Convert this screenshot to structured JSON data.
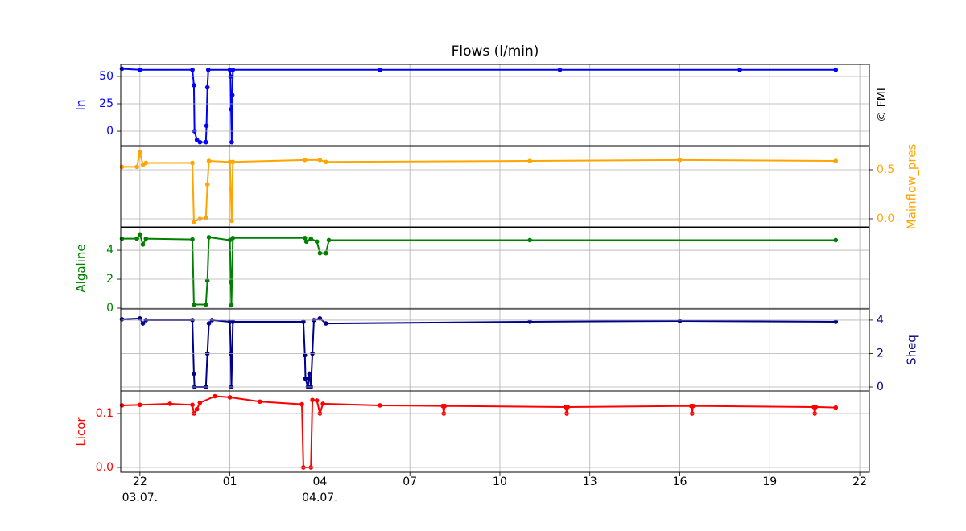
{
  "chart_data": [
    {
      "type": "line",
      "title": "Flows (l/min)",
      "annotation": "© FMI",
      "yaxis": "left",
      "ylim": [
        -13.2,
        61
      ],
      "yticks": [
        0,
        25,
        50
      ],
      "series": [
        {
          "name": "In",
          "color": "#0000ff",
          "x": [
            21.4,
            22,
            23.75,
            23.8,
            23.82,
            23.9,
            24.0,
            24.2,
            24.22,
            24.25,
            24.28,
            25.0,
            25.02,
            25.04,
            25.06,
            25.08,
            25.1,
            30,
            36,
            42,
            45.2
          ],
          "values": [
            57,
            56,
            56,
            42,
            0,
            -8,
            -10,
            -10,
            5,
            40,
            56,
            56,
            50,
            20,
            -10,
            33,
            56,
            56,
            56,
            56,
            56
          ]
        }
      ]
    },
    {
      "type": "line",
      "yaxis": "right",
      "ylim": [
        -0.082,
        0.738
      ],
      "yticks": [
        {
          "value": 0,
          "label": "0.0"
        },
        0.5
      ],
      "series": [
        {
          "name": "Mainflow_pres",
          "color": "#ffa500",
          "x": [
            21.4,
            21.9,
            22.0,
            22.1,
            22.2,
            23.75,
            23.8,
            24.0,
            24.2,
            24.25,
            24.3,
            25.0,
            25.03,
            25.06,
            25.1,
            27.5,
            28.0,
            28.2,
            35,
            40,
            45.2
          ],
          "values": [
            0.53,
            0.53,
            0.68,
            0.55,
            0.57,
            0.57,
            -0.03,
            0.0,
            0.01,
            0.35,
            0.59,
            0.58,
            0.3,
            -0.02,
            0.58,
            0.6,
            0.6,
            0.58,
            0.59,
            0.6,
            0.59
          ]
        }
      ]
    },
    {
      "type": "line",
      "yaxis": "left",
      "ylim": [
        -0.056,
        5.56
      ],
      "yticks": [
        0,
        2,
        4
      ],
      "series": [
        {
          "name": "Algaline",
          "color": "#008000",
          "x": [
            21.4,
            21.9,
            22.0,
            22.1,
            22.2,
            23.75,
            23.8,
            24.2,
            24.25,
            24.3,
            25.0,
            25.03,
            25.05,
            25.1,
            27.5,
            27.55,
            27.7,
            27.9,
            28.0,
            28.2,
            28.3,
            35,
            45.2
          ],
          "values": [
            4.8,
            4.8,
            5.1,
            4.4,
            4.8,
            4.75,
            0.25,
            0.25,
            1.9,
            4.9,
            4.7,
            1.8,
            0.2,
            4.85,
            4.85,
            4.6,
            4.8,
            4.6,
            3.8,
            3.8,
            4.7,
            4.7,
            4.7
          ]
        }
      ]
    },
    {
      "type": "line",
      "yaxis": "right",
      "ylim": [
        -0.24,
        4.67
      ],
      "yticks": [
        0,
        2,
        4
      ],
      "series": [
        {
          "name": "Sheq",
          "color": "#00008b",
          "x": [
            21.4,
            22,
            22.1,
            22.2,
            23.75,
            23.8,
            23.82,
            24.2,
            24.25,
            24.3,
            24.4,
            25.0,
            25.03,
            25.05,
            25.1,
            27.45,
            27.5,
            27.52,
            27.6,
            27.65,
            27.7,
            27.75,
            27.8,
            28.0,
            28.2,
            35,
            40,
            45.2
          ],
          "values": [
            4.05,
            4.1,
            3.8,
            4,
            4,
            0.8,
            0,
            0,
            2,
            3.8,
            4.0,
            3.9,
            2,
            0,
            3.9,
            3.9,
            1.9,
            0.5,
            0,
            0.8,
            0,
            2,
            4,
            4.1,
            3.8,
            3.9,
            3.95,
            3.9
          ]
        }
      ]
    },
    {
      "type": "line",
      "yaxis": "left",
      "ylim": [
        -0.009,
        0.1418
      ],
      "yticks": [
        {
          "value": 0,
          "label": "0.0"
        },
        0.1
      ],
      "xlim": [
        21.36,
        46.32
      ],
      "xticks": [
        22,
        {
          "value": 25,
          "label": "01"
        },
        {
          "value": 28,
          "label": "04"
        },
        {
          "value": 31,
          "label": "07"
        },
        {
          "value": 34,
          "label": "10"
        },
        {
          "value": 37,
          "label": "13"
        },
        {
          "value": 40,
          "label": "16"
        },
        {
          "value": 43,
          "label": "19"
        },
        {
          "value": 46,
          "label": "22"
        }
      ],
      "date_labels": [
        {
          "value": 22,
          "label": "03.07."
        },
        {
          "value": 28,
          "label": "04.07."
        }
      ],
      "grid": true,
      "series": [
        {
          "name": "Licor",
          "color": "#ff0000",
          "x": [
            21.4,
            22,
            23,
            23.75,
            23.8,
            23.9,
            24.0,
            24.5,
            25.0,
            26,
            27.4,
            27.45,
            27.7,
            27.75,
            27.9,
            28.0,
            28.1,
            30,
            32.1,
            32.13,
            32.16,
            36.2,
            36.23,
            36.26,
            40.38,
            40.41,
            40.44,
            44.47,
            44.5,
            44.53,
            45.2
          ],
          "values": [
            0.115,
            0.116,
            0.118,
            0.116,
            0.1,
            0.108,
            0.12,
            0.132,
            0.13,
            0.122,
            0.117,
            0.0,
            0.0,
            0.125,
            0.124,
            0.1,
            0.118,
            0.115,
            0.114,
            0.1,
            0.114,
            0.112,
            0.1,
            0.112,
            0.114,
            0.1,
            0.114,
            0.112,
            0.1,
            0.112,
            0.111
          ]
        }
      ]
    }
  ]
}
